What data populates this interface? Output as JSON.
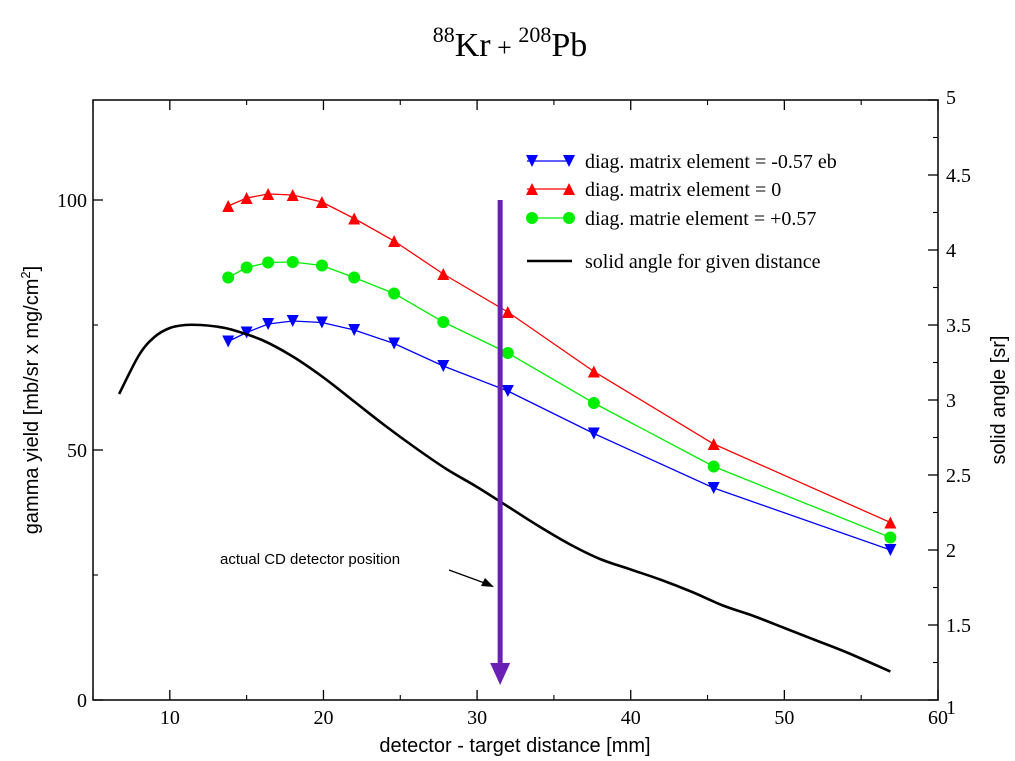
{
  "chart_data": {
    "type": "line",
    "title_parts": {
      "mass1": "88",
      "elem1": "Kr",
      "plus": " + ",
      "mass2": "208",
      "elem2": "Pb"
    },
    "xlabel": "detector - target distance [mm]",
    "ylabel_main": "gamma yield [mb/sr x mg/cm",
    "ylabel_sup": "2",
    "ylabel_end": "]",
    "y2label": "solid angle [sr]",
    "xlim": [
      5,
      60
    ],
    "ylim": [
      0,
      120
    ],
    "y2lim": [
      1,
      5
    ],
    "x_ticks": [
      {
        "value": 10,
        "label": "10"
      },
      {
        "value": 20,
        "label": "20"
      },
      {
        "value": 30,
        "label": "30"
      },
      {
        "value": 40,
        "label": "40"
      },
      {
        "value": 50,
        "label": "50"
      },
      {
        "value": 60,
        "label": "60"
      }
    ],
    "y_ticks": [
      {
        "value": 0,
        "label": "0"
      },
      {
        "value": 50,
        "label": "50"
      },
      {
        "value": 100,
        "label": "100"
      }
    ],
    "y2_ticks": [
      {
        "value": 1,
        "label": "1"
      },
      {
        "value": 1.5,
        "label": "1.5"
      },
      {
        "value": 2,
        "label": "2"
      },
      {
        "value": 2.5,
        "label": "2.5"
      },
      {
        "value": 3,
        "label": "3"
      },
      {
        "value": 3.5,
        "label": "3.5"
      },
      {
        "value": 4,
        "label": "4"
      },
      {
        "value": 4.5,
        "label": "4.5"
      },
      {
        "value": 5,
        "label": "5"
      }
    ],
    "series": [
      {
        "name": "diag. matrix element = -0.57 eb",
        "color": "#0000ff",
        "marker": "triangle-down",
        "axis": "left",
        "x": [
          13.8,
          15.0,
          16.4,
          18.0,
          19.9,
          22.0,
          24.6,
          27.8,
          32.0,
          37.6,
          45.4,
          56.9
        ],
        "y": [
          71.7,
          73.5,
          75.2,
          75.8,
          75.5,
          74.0,
          71.3,
          66.8,
          61.8,
          53.3,
          42.4,
          30.0
        ]
      },
      {
        "name": "diag. matrix element = 0",
        "color": "#ff0000",
        "marker": "triangle-up",
        "axis": "left",
        "x": [
          13.8,
          15.0,
          16.4,
          18.0,
          19.9,
          22.0,
          24.6,
          27.8,
          32.0,
          37.6,
          45.4,
          56.9
        ],
        "y": [
          98.8,
          100.4,
          101.2,
          101.0,
          99.6,
          96.3,
          91.8,
          85.2,
          77.6,
          65.7,
          51.2,
          35.5
        ]
      },
      {
        "name": "diag. matrie element = +0.57",
        "color": "#00ee00",
        "marker": "circle",
        "axis": "left",
        "x": [
          13.8,
          15.0,
          16.4,
          18.0,
          19.9,
          22.0,
          24.6,
          27.8,
          32.0,
          37.6,
          45.4,
          56.9
        ],
        "y": [
          84.5,
          86.5,
          87.5,
          87.6,
          86.9,
          84.5,
          81.3,
          75.6,
          69.4,
          59.4,
          46.7,
          32.5
        ]
      },
      {
        "name": "solid angle for given distance",
        "color": "#000000",
        "marker": "none",
        "axis": "right",
        "x": [
          6.7,
          8.0,
          9.0,
          10.0,
          11.0,
          12.0,
          13.0,
          14.0,
          16.0,
          18.0,
          20.0,
          22.0,
          24.0,
          26.0,
          28.0,
          30.0,
          32.0,
          34.0,
          36.0,
          38.0,
          40.0,
          42.0,
          44.0,
          46.0,
          48.0,
          50.0,
          52.0,
          54.0,
          56.9
        ],
        "y": [
          3.04,
          3.3,
          3.42,
          3.48,
          3.5,
          3.5,
          3.49,
          3.47,
          3.4,
          3.29,
          3.15,
          2.99,
          2.83,
          2.68,
          2.54,
          2.42,
          2.29,
          2.16,
          2.04,
          1.94,
          1.87,
          1.8,
          1.72,
          1.63,
          1.56,
          1.48,
          1.4,
          1.32,
          1.19
        ]
      }
    ],
    "legend_position": "top-right",
    "annotations": {
      "arrow_x": 31.5,
      "arrow_y_top": 100,
      "arrow_y_bottom": 3,
      "arrow_color": "#6a1fb5",
      "label": "actual CD detector position"
    }
  }
}
